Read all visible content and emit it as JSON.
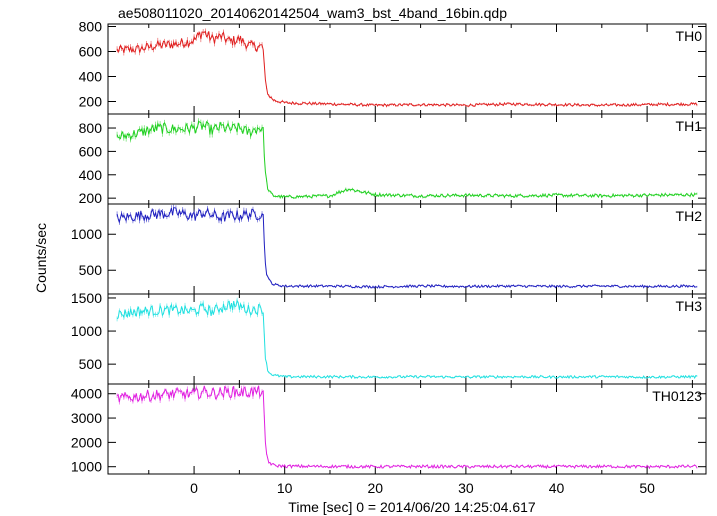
{
  "chart_data": {
    "type": "line",
    "title": "ae508011020_20140620142504_wam3_bst_4band_16bin.qdp",
    "xlabel": "Time [sec] 0 = 2014/06/20 14:25:04.617",
    "ylabel": "Counts/sec",
    "xlim": [
      -9.5,
      56.5
    ],
    "x_ticks": [
      0,
      10,
      20,
      30,
      40,
      50
    ],
    "grid": false,
    "colors": [
      "#e02020",
      "#20d020",
      "#2020c0",
      "#20e0e0",
      "#e020e0"
    ],
    "series": [
      {
        "name": "TH0",
        "ylim": [
          100,
          820
        ],
        "y_ticks": [
          200,
          400,
          600,
          800
        ],
        "x": [
          -8.5,
          -6,
          -4,
          -2,
          0,
          1,
          2,
          3,
          4,
          5,
          6,
          7,
          7.6,
          7.9,
          8.2,
          8.8,
          10,
          15,
          20,
          25,
          30,
          35,
          40,
          45,
          50,
          55.5
        ],
        "values": [
          610,
          620,
          650,
          660,
          690,
          760,
          700,
          720,
          680,
          700,
          650,
          640,
          640,
          330,
          250,
          210,
          190,
          180,
          170,
          175,
          170,
          180,
          175,
          170,
          175,
          180
        ]
      },
      {
        "name": "TH1",
        "ylim": [
          150,
          920
        ],
        "y_ticks": [
          200,
          400,
          600,
          800
        ],
        "x": [
          -8.5,
          -6,
          -4,
          -2,
          0,
          1,
          2,
          3,
          4,
          5,
          6,
          7,
          7.6,
          7.9,
          8.2,
          8.8,
          10,
          15,
          17,
          20,
          25,
          30,
          35,
          40,
          45,
          50,
          55.5
        ],
        "values": [
          720,
          760,
          800,
          790,
          800,
          820,
          780,
          810,
          790,
          800,
          760,
          800,
          800,
          380,
          260,
          220,
          210,
          220,
          280,
          230,
          220,
          225,
          220,
          225,
          220,
          225,
          230
        ]
      },
      {
        "name": "TH2",
        "ylim": [
          170,
          1420
        ],
        "y_ticks": [
          500,
          1000
        ],
        "x": [
          -8.5,
          -6,
          -4,
          -2,
          0,
          1,
          2,
          3,
          4,
          5,
          6,
          7,
          7.6,
          7.9,
          8.2,
          8.8,
          10,
          15,
          20,
          25,
          30,
          35,
          40,
          45,
          50,
          55.5
        ],
        "values": [
          1220,
          1260,
          1280,
          1300,
          1250,
          1300,
          1270,
          1230,
          1260,
          1260,
          1280,
          1270,
          1300,
          520,
          370,
          300,
          280,
          280,
          270,
          280,
          275,
          280,
          275,
          280,
          275,
          280
        ]
      },
      {
        "name": "TH3",
        "ylim": [
          200,
          1560
        ],
        "y_ticks": [
          500,
          1000,
          1500
        ],
        "x": [
          -8.5,
          -6,
          -4,
          -2,
          0,
          1,
          2,
          3,
          4,
          5,
          6,
          7,
          7.6,
          7.9,
          8.2,
          8.8,
          10,
          15,
          20,
          25,
          30,
          35,
          40,
          45,
          50,
          55.5
        ],
        "values": [
          1250,
          1300,
          1310,
          1320,
          1300,
          1350,
          1290,
          1360,
          1400,
          1380,
          1320,
          1330,
          1350,
          550,
          380,
          330,
          310,
          310,
          305,
          310,
          305,
          310,
          305,
          310,
          305,
          310
        ]
      },
      {
        "name": "TH0123",
        "ylim": [
          700,
          4400
        ],
        "y_ticks": [
          1000,
          2000,
          3000,
          4000
        ],
        "x": [
          -8.5,
          -6,
          -4,
          -2,
          0,
          1,
          2,
          3,
          4,
          5,
          6,
          7,
          7.6,
          7.9,
          8.2,
          8.8,
          10,
          15,
          20,
          25,
          30,
          35,
          40,
          45,
          50,
          55.5
        ],
        "values": [
          3800,
          3900,
          3950,
          4000,
          3980,
          4100,
          4020,
          4050,
          4080,
          4060,
          4070,
          4080,
          4100,
          1700,
          1200,
          1050,
          1020,
          1010,
          1000,
          1010,
          1000,
          1010,
          1000,
          1010,
          1000,
          1010
        ]
      }
    ]
  }
}
